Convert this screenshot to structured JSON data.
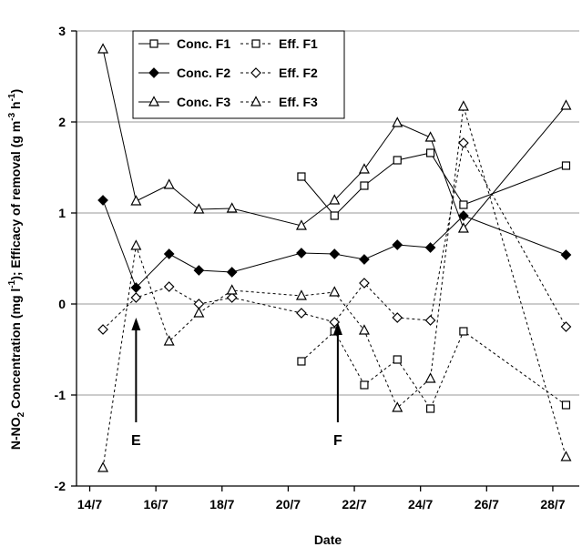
{
  "chart_data": {
    "type": "line",
    "xlabel": "Date",
    "ylabel_parts": {
      "p1": "N-NO",
      "p1sub": "2",
      "p2": " Concentration (mg l",
      "p2sup": "-1",
      "p3": "); Efficacy of removal (g m",
      "p3sup": "-3",
      "p4": " h",
      "p4sup": "-1",
      "p5": ")"
    },
    "xticks": [
      {
        "date": "2000-07-14",
        "label": "14/7"
      },
      {
        "date": "2000-07-16",
        "label": "16/7"
      },
      {
        "date": "2000-07-18",
        "label": "18/7"
      },
      {
        "date": "2000-07-20",
        "label": "20/7"
      },
      {
        "date": "2000-07-22",
        "label": "22/7"
      },
      {
        "date": "2000-07-24",
        "label": "24/7"
      },
      {
        "date": "2000-07-26",
        "label": "26/7"
      },
      {
        "date": "2000-07-28",
        "label": "28/7"
      }
    ],
    "xlim": [
      "2000-07-13.6",
      "2000-07-28.8"
    ],
    "ylim": [
      -2,
      3
    ],
    "yticks": [
      -2,
      -1,
      0,
      1,
      2,
      3
    ],
    "ytick_labels": [
      "-2",
      "-1",
      "0",
      "1",
      "2",
      "3"
    ],
    "grid": "horizontal",
    "legend_position": "top",
    "series": [
      {
        "name": "Conc. F1",
        "marker": "square",
        "filled": false,
        "dashed": false,
        "points": [
          [
            "2000-07-20.4",
            1.4
          ],
          [
            "2000-07-21.4",
            0.97
          ],
          [
            "2000-07-22.3",
            1.3
          ],
          [
            "2000-07-23.3",
            1.58
          ],
          [
            "2000-07-24.3",
            1.66
          ],
          [
            "2000-07-25.3",
            1.09
          ],
          [
            "2000-07-28.4",
            1.52
          ]
        ]
      },
      {
        "name": "Eff. F1",
        "marker": "square",
        "filled": false,
        "dashed": true,
        "points": [
          [
            "2000-07-20.4",
            -0.63
          ],
          [
            "2000-07-21.4",
            -0.3
          ],
          [
            "2000-07-22.3",
            -0.89
          ],
          [
            "2000-07-23.3",
            -0.61
          ],
          [
            "2000-07-24.3",
            -1.15
          ],
          [
            "2000-07-25.3",
            -0.3
          ],
          [
            "2000-07-28.4",
            -1.11
          ]
        ]
      },
      {
        "name": "Conc. F2",
        "marker": "diamond",
        "filled": true,
        "dashed": false,
        "points": [
          [
            "2000-07-14.4",
            1.14
          ],
          [
            "2000-07-15.4",
            0.18
          ],
          [
            "2000-07-16.4",
            0.55
          ],
          [
            "2000-07-17.3",
            0.37
          ],
          [
            "2000-07-18.3",
            0.35
          ],
          [
            "2000-07-20.4",
            0.56
          ],
          [
            "2000-07-21.4",
            0.55
          ],
          [
            "2000-07-22.3",
            0.49
          ],
          [
            "2000-07-23.3",
            0.65
          ],
          [
            "2000-07-24.3",
            0.62
          ],
          [
            "2000-07-25.3",
            0.97
          ],
          [
            "2000-07-28.4",
            0.54
          ]
        ]
      },
      {
        "name": "Eff. F2",
        "marker": "diamond",
        "filled": false,
        "dashed": true,
        "points": [
          [
            "2000-07-14.4",
            -0.28
          ],
          [
            "2000-07-15.4",
            0.07
          ],
          [
            "2000-07-16.4",
            0.19
          ],
          [
            "2000-07-17.3",
            0.0
          ],
          [
            "2000-07-18.3",
            0.07
          ],
          [
            "2000-07-20.4",
            -0.1
          ],
          [
            "2000-07-21.4",
            -0.2
          ],
          [
            "2000-07-22.3",
            0.23
          ],
          [
            "2000-07-23.3",
            -0.15
          ],
          [
            "2000-07-24.3",
            -0.18
          ],
          [
            "2000-07-25.3",
            1.77
          ],
          [
            "2000-07-28.4",
            -0.25
          ]
        ]
      },
      {
        "name": "Conc. F3",
        "marker": "triangle",
        "filled": false,
        "dashed": false,
        "points": [
          [
            "2000-07-14.4",
            2.8
          ],
          [
            "2000-07-15.4",
            1.13
          ],
          [
            "2000-07-16.4",
            1.31
          ],
          [
            "2000-07-17.3",
            1.04
          ],
          [
            "2000-07-18.3",
            1.05
          ],
          [
            "2000-07-20.4",
            0.86
          ],
          [
            "2000-07-21.4",
            1.14
          ],
          [
            "2000-07-22.3",
            1.48
          ],
          [
            "2000-07-23.3",
            1.99
          ],
          [
            "2000-07-24.3",
            1.83
          ],
          [
            "2000-07-25.3",
            0.83
          ],
          [
            "2000-07-28.4",
            2.18
          ]
        ]
      },
      {
        "name": "Eff. F3",
        "marker": "triangle",
        "filled": false,
        "dashed": true,
        "points": [
          [
            "2000-07-14.4",
            -1.8
          ],
          [
            "2000-07-15.4",
            0.64
          ],
          [
            "2000-07-16.4",
            -0.41
          ],
          [
            "2000-07-17.3",
            -0.1
          ],
          [
            "2000-07-18.3",
            0.15
          ],
          [
            "2000-07-20.4",
            0.09
          ],
          [
            "2000-07-21.4",
            0.13
          ],
          [
            "2000-07-22.3",
            -0.29
          ],
          [
            "2000-07-23.3",
            -1.14
          ],
          [
            "2000-07-24.3",
            -0.82
          ],
          [
            "2000-07-25.3",
            2.17
          ],
          [
            "2000-07-28.4",
            -1.68
          ]
        ]
      }
    ],
    "annotations": [
      {
        "label": "E",
        "date": "2000-07-15.4",
        "arrow_from": -1.3,
        "arrow_to": -0.15
      },
      {
        "label": "F",
        "date": "2000-07-21.5",
        "arrow_from": -1.3,
        "arrow_to": -0.2
      }
    ]
  }
}
